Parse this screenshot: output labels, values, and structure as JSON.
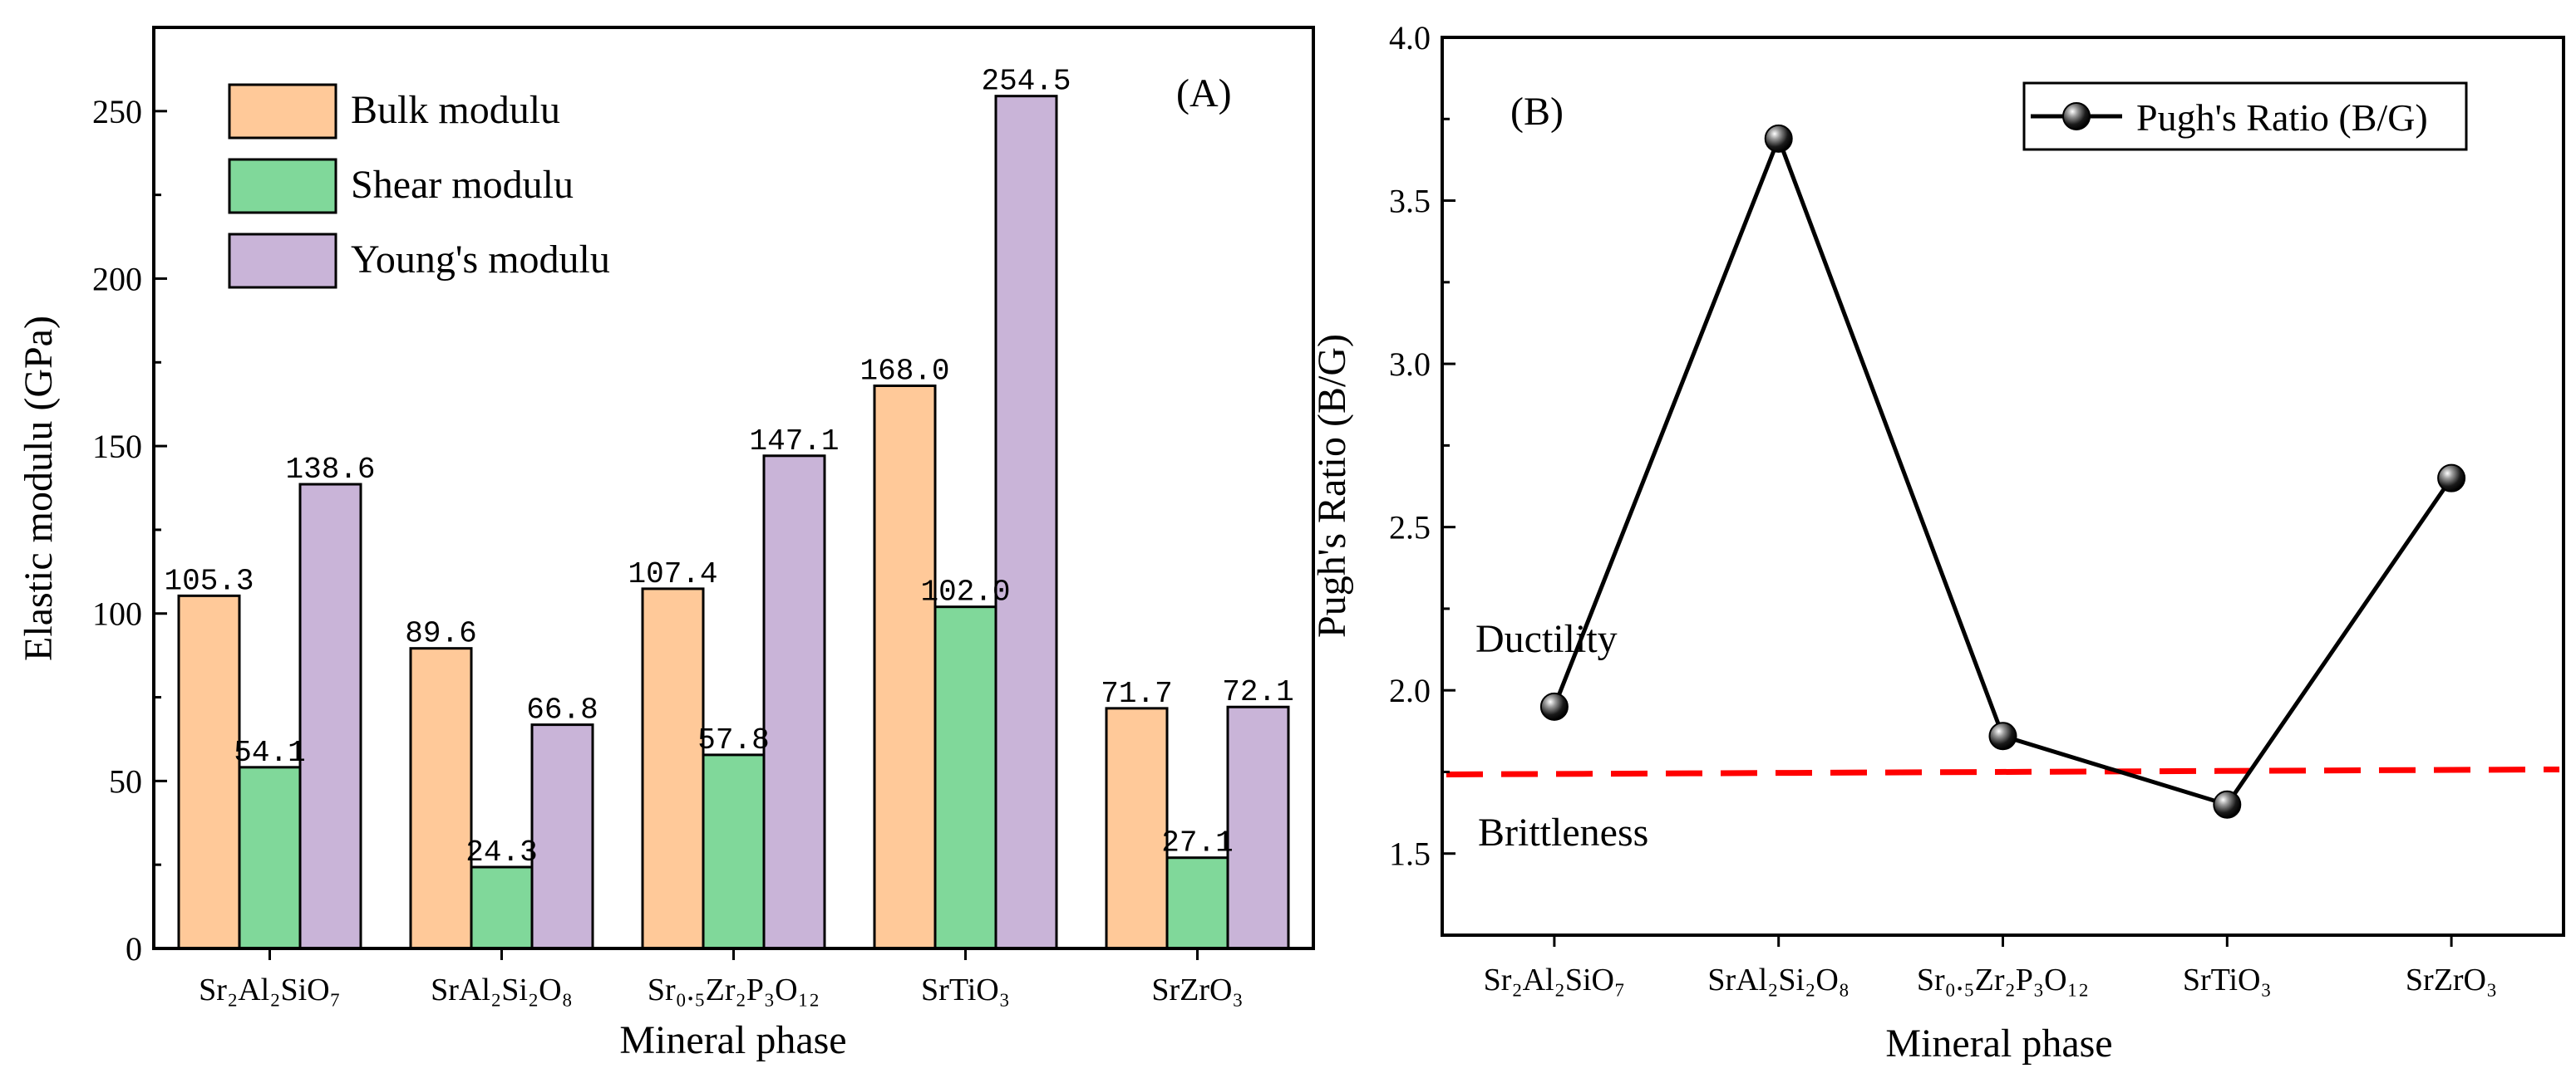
{
  "chart_data": [
    {
      "panel": "A",
      "type": "bar",
      "panel_label": "(A)",
      "categories": [
        "Sr₂Al₂SiO₇",
        "SrAl₂Si₂O₈",
        "Sr₀.₅Zr₂P₃O₁₂",
        "SrTiO₃",
        "SrZrO₃"
      ],
      "series": [
        {
          "name": "Bulk modulu",
          "color": "#FFC999",
          "values": [
            105.3,
            89.6,
            107.4,
            168.0,
            71.7
          ],
          "labels": [
            "105.3",
            "89.6",
            "107.4",
            "168.0",
            "71.7"
          ]
        },
        {
          "name": "Shear modulu",
          "color": "#80D89A",
          "values": [
            54.1,
            24.3,
            57.8,
            102.0,
            27.1
          ],
          "labels": [
            "54.1",
            "24.3",
            "57.8",
            "102.0",
            "27.1"
          ]
        },
        {
          "name": "Young's modulu",
          "color": "#C9B4D8",
          "values": [
            138.6,
            66.8,
            147.1,
            254.5,
            72.1
          ],
          "labels": [
            "138.6",
            "66.8",
            "147.1",
            "254.5",
            "72.1"
          ]
        }
      ],
      "xlabel": "Mineral phase",
      "ylabel": "Elastic modulu (GPa)",
      "ylim": [
        0,
        275
      ],
      "yticks": [
        0,
        50,
        100,
        150,
        200,
        250
      ],
      "ytick_labels": [
        "0",
        "50",
        "100",
        "150",
        "200",
        "250"
      ],
      "legend_position": "top-left",
      "grid": false
    },
    {
      "panel": "B",
      "type": "line",
      "panel_label": "(B)",
      "categories": [
        "Sr₂Al₂SiO₇",
        "SrAl₂Si₂O₈",
        "Sr₀.₅Zr₂P₃O₁₂",
        "SrTiO₃",
        "SrZrO₃"
      ],
      "series": [
        {
          "name": "Pugh's Ratio (B/G)",
          "color": "#000000",
          "values": [
            1.95,
            3.69,
            1.86,
            1.65,
            2.65
          ]
        }
      ],
      "reference_line": {
        "value": 1.75,
        "color": "#FF0000",
        "style": "dashed"
      },
      "annotations": [
        "Ductility",
        "Brittleness"
      ],
      "xlabel": "Mineral phase",
      "ylabel": "Pugh's Ratio (B/G)",
      "ylim": [
        1.25,
        4.0
      ],
      "yticks": [
        1.5,
        2.0,
        2.5,
        3.0,
        3.5,
        4.0
      ],
      "ytick_labels": [
        "1.5",
        "2.0",
        "2.5",
        "3.0",
        "3.5",
        "4.0"
      ],
      "legend_position": "top-right",
      "grid": false
    }
  ]
}
